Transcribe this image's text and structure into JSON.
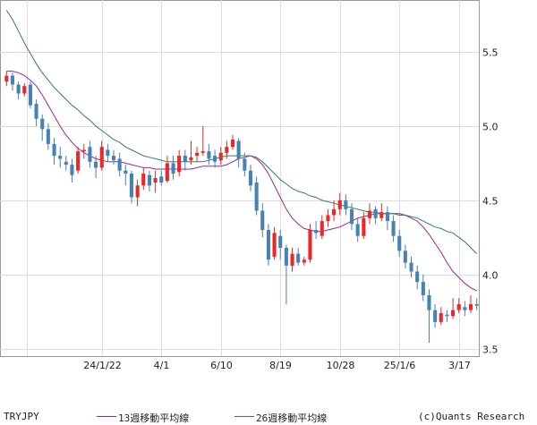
{
  "chart_data": {
    "type": "candlestick",
    "symbol": "TRYJPY",
    "ylim": [
      3.45,
      5.85
    ],
    "yticks": [
      3.5,
      4.0,
      4.5,
      5.0,
      5.5
    ],
    "ytick_labels": [
      "3.5",
      "4.0",
      "4.5",
      "5.0",
      "5.5"
    ],
    "x_labels": [
      {
        "index": 16,
        "label": "24/1/22"
      },
      {
        "index": 26,
        "label": "4/1"
      },
      {
        "index": 36,
        "label": "6/10"
      },
      {
        "index": 46,
        "label": "8/19"
      },
      {
        "index": 56,
        "label": "10/28"
      },
      {
        "index": 66,
        "label": "25/1/6"
      },
      {
        "index": 76,
        "label": "3/17"
      }
    ],
    "grid": true,
    "colors": {
      "up": "#e8282b",
      "down": "#4682b4",
      "ma13": "#a020a0",
      "ma26": "#2e7d6b"
    },
    "series": [
      {
        "name": "13週移動平均線",
        "values": [
          5.37,
          5.37,
          5.36,
          5.34,
          5.31,
          5.27,
          5.21,
          5.14,
          5.07,
          5.0,
          4.94,
          4.89,
          4.85,
          4.82,
          4.8,
          4.78,
          4.77,
          4.76,
          4.76,
          4.76,
          4.75,
          4.74,
          4.73,
          4.72,
          4.72,
          4.71,
          4.71,
          4.71,
          4.71,
          4.71,
          4.71,
          4.71,
          4.72,
          4.73,
          4.73,
          4.73,
          4.73,
          4.74,
          4.76,
          4.78,
          4.79,
          4.8,
          4.78,
          4.74,
          4.68,
          4.6,
          4.52,
          4.44,
          4.38,
          4.34,
          4.31,
          4.3,
          4.29,
          4.29,
          4.3,
          4.31,
          4.32,
          4.34,
          4.36,
          4.38,
          4.39,
          4.4,
          4.41,
          4.41,
          4.41,
          4.41,
          4.41,
          4.4,
          4.38,
          4.36,
          4.32,
          4.27,
          4.21,
          4.15,
          4.08,
          4.02,
          3.98,
          3.94,
          3.91,
          3.89
        ]
      },
      {
        "name": "26週移動平均線",
        "values": [
          5.78,
          5.72,
          5.64,
          5.56,
          5.49,
          5.42,
          5.36,
          5.31,
          5.26,
          5.22,
          5.18,
          5.14,
          5.11,
          5.07,
          5.04,
          5.0,
          4.97,
          4.94,
          4.91,
          4.89,
          4.86,
          4.84,
          4.82,
          4.8,
          4.79,
          4.78,
          4.77,
          4.76,
          4.76,
          4.76,
          4.76,
          4.76,
          4.76,
          4.76,
          4.77,
          4.78,
          4.79,
          4.8,
          4.8,
          4.8,
          4.8,
          4.8,
          4.79,
          4.76,
          4.72,
          4.68,
          4.64,
          4.61,
          4.58,
          4.56,
          4.55,
          4.53,
          4.52,
          4.5,
          4.49,
          4.48,
          4.47,
          4.46,
          4.45,
          4.44,
          4.43,
          4.42,
          4.42,
          4.41,
          4.41,
          4.41,
          4.4,
          4.4,
          4.39,
          4.38,
          4.36,
          4.34,
          4.32,
          4.31,
          4.29,
          4.28,
          4.25,
          4.22,
          4.18,
          4.14
        ]
      }
    ],
    "candles": [
      [
        5.3,
        5.34,
        5.37,
        5.27
      ],
      [
        5.34,
        5.28,
        5.36,
        5.24
      ],
      [
        5.28,
        5.22,
        5.3,
        5.18
      ],
      [
        5.22,
        5.27,
        5.29,
        5.2
      ],
      [
        5.28,
        5.14,
        5.3,
        5.12
      ],
      [
        5.15,
        5.05,
        5.18,
        5.0
      ],
      [
        5.05,
        4.98,
        5.08,
        4.9
      ],
      [
        4.98,
        4.88,
        5.02,
        4.84
      ],
      [
        4.88,
        4.8,
        4.92,
        4.74
      ],
      [
        4.8,
        4.78,
        4.86,
        4.72
      ],
      [
        4.76,
        4.74,
        4.8,
        4.7
      ],
      [
        4.74,
        4.67,
        4.78,
        4.62
      ],
      [
        4.7,
        4.83,
        4.86,
        4.68
      ],
      [
        4.83,
        4.84,
        4.88,
        4.78
      ],
      [
        4.86,
        4.76,
        4.9,
        4.72
      ],
      [
        4.76,
        4.72,
        4.8,
        4.65
      ],
      [
        4.72,
        4.86,
        4.9,
        4.7
      ],
      [
        4.84,
        4.8,
        4.88,
        4.76
      ],
      [
        4.8,
        4.77,
        4.84,
        4.74
      ],
      [
        4.78,
        4.7,
        4.82,
        4.66
      ],
      [
        4.7,
        4.68,
        4.74,
        4.6
      ],
      [
        4.68,
        4.52,
        4.7,
        4.48
      ],
      [
        4.52,
        4.6,
        4.64,
        4.46
      ],
      [
        4.6,
        4.68,
        4.72,
        4.57
      ],
      [
        4.67,
        4.6,
        4.7,
        4.56
      ],
      [
        4.62,
        4.65,
        4.7,
        4.55
      ],
      [
        4.66,
        4.62,
        4.7,
        4.6
      ],
      [
        4.63,
        4.75,
        4.8,
        4.62
      ],
      [
        4.75,
        4.68,
        4.8,
        4.64
      ],
      [
        4.69,
        4.8,
        4.84,
        4.66
      ],
      [
        4.8,
        4.76,
        4.84,
        4.7
      ],
      [
        4.77,
        4.79,
        4.9,
        4.74
      ],
      [
        4.8,
        4.82,
        4.86,
        4.76
      ],
      [
        4.82,
        4.83,
        5.0,
        4.8
      ],
      [
        4.83,
        4.78,
        4.88,
        4.74
      ],
      [
        4.8,
        4.76,
        4.84,
        4.72
      ],
      [
        4.77,
        4.82,
        4.86,
        4.74
      ],
      [
        4.82,
        4.86,
        4.9,
        4.78
      ],
      [
        4.86,
        4.91,
        4.94,
        4.84
      ],
      [
        4.9,
        4.78,
        4.92,
        4.72
      ],
      [
        4.78,
        4.7,
        4.82,
        4.66
      ],
      [
        4.7,
        4.6,
        4.74,
        4.56
      ],
      [
        4.62,
        4.43,
        4.66,
        4.4
      ],
      [
        4.43,
        4.3,
        4.48,
        4.25
      ],
      [
        4.3,
        4.1,
        4.34,
        4.06
      ],
      [
        4.12,
        4.28,
        4.32,
        4.1
      ],
      [
        4.26,
        4.18,
        4.3,
        4.1
      ],
      [
        4.18,
        4.06,
        4.2,
        3.8
      ],
      [
        4.06,
        4.14,
        4.18,
        4.02
      ],
      [
        4.14,
        4.08,
        4.18,
        4.06
      ],
      [
        4.08,
        4.1,
        4.12,
        4.06
      ],
      [
        4.1,
        4.3,
        4.34,
        4.08
      ],
      [
        4.3,
        4.28,
        4.36,
        4.24
      ],
      [
        4.26,
        4.36,
        4.4,
        4.24
      ],
      [
        4.36,
        4.4,
        4.44,
        4.32
      ],
      [
        4.4,
        4.44,
        4.5,
        4.36
      ],
      [
        4.44,
        4.5,
        4.55,
        4.4
      ],
      [
        4.5,
        4.44,
        4.54,
        4.4
      ],
      [
        4.44,
        4.34,
        4.48,
        4.3
      ],
      [
        4.34,
        4.26,
        4.38,
        4.22
      ],
      [
        4.26,
        4.38,
        4.42,
        4.24
      ],
      [
        4.38,
        4.43,
        4.48,
        4.34
      ],
      [
        4.44,
        4.38,
        4.46,
        4.34
      ],
      [
        4.38,
        4.42,
        4.48,
        4.36
      ],
      [
        4.42,
        4.36,
        4.46,
        4.3
      ],
      [
        4.36,
        4.26,
        4.4,
        4.22
      ],
      [
        4.26,
        4.16,
        4.3,
        4.12
      ],
      [
        4.16,
        4.08,
        4.2,
        4.04
      ],
      [
        4.08,
        4.02,
        4.12,
        3.98
      ],
      [
        4.02,
        3.95,
        4.06,
        3.9
      ],
      [
        3.95,
        3.86,
        4.0,
        3.82
      ],
      [
        3.86,
        3.76,
        3.9,
        3.54
      ],
      [
        3.76,
        3.68,
        3.8,
        3.64
      ],
      [
        3.68,
        3.74,
        3.78,
        3.66
      ],
      [
        3.73,
        3.72,
        3.76,
        3.68
      ],
      [
        3.72,
        3.76,
        3.84,
        3.7
      ],
      [
        3.76,
        3.8,
        3.84,
        3.74
      ],
      [
        3.78,
        3.76,
        3.82,
        3.72
      ],
      [
        3.76,
        3.8,
        3.86,
        3.74
      ],
      [
        3.8,
        3.79,
        3.84,
        3.76
      ]
    ]
  },
  "footer": {
    "symbol": "TRYJPY",
    "legend1": "13週移動平均線",
    "legend2": "26週移動平均線",
    "credit": "(c)Quants Research"
  }
}
